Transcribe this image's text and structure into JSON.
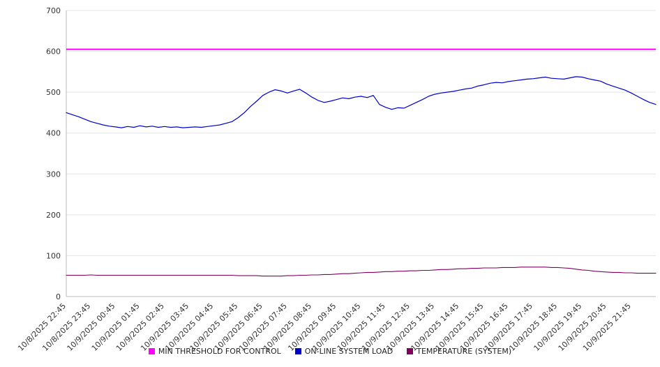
{
  "chart_data": {
    "type": "line",
    "title": "",
    "xlabel": "",
    "ylabel": "",
    "ylim": [
      0,
      700
    ],
    "ytick_step": 100,
    "y_tick_labels": [
      "0",
      "100",
      "200",
      "300",
      "400",
      "500",
      "600",
      "700"
    ],
    "grid": "horizontal",
    "legend_position": "bottom-center",
    "x_labels": [
      "10/8/2025 22:45",
      "10/8/2025 23:45",
      "10/9/2025 00:45",
      "10/9/2025 01:45",
      "10/9/2025 02:45",
      "10/9/2025 03:45",
      "10/9/2025 04:45",
      "10/9/2025 05:45",
      "10/9/2025 06:45",
      "10/9/2025 07:45",
      "10/9/2025 08:45",
      "10/9/2025 09:45",
      "10/9/2025 10:45",
      "10/9/2025 11:45",
      "10/9/2025 12:45",
      "10/9/2025 13:45",
      "10/9/2025 14:45",
      "10/9/2025 15:45",
      "10/9/2025 16:45",
      "10/9/2025 17:45",
      "10/9/2025 18:45",
      "10/9/2025 19:45",
      "10/9/2025 20:45",
      "10/9/2025 21:45"
    ],
    "points_per_label_interval": 4,
    "series": [
      {
        "name": "MIN THRESHOLD FOR CONTROL",
        "color": "#ff00ff",
        "stroke_width": 2,
        "constant": 605
      },
      {
        "name": "ON-LINE SYSTEM LOAD",
        "color": "#0000cc",
        "stroke_width": 1.2,
        "values": [
          450,
          445,
          440,
          434,
          428,
          424,
          420,
          417,
          415,
          413,
          416,
          414,
          418,
          415,
          417,
          414,
          416,
          414,
          415,
          413,
          414,
          415,
          414,
          416,
          418,
          420,
          424,
          428,
          438,
          450,
          465,
          478,
          492,
          500,
          506,
          503,
          498,
          503,
          507,
          498,
          488,
          480,
          475,
          478,
          482,
          486,
          484,
          488,
          490,
          487,
          492,
          470,
          463,
          458,
          462,
          461,
          468,
          475,
          482,
          490,
          495,
          498,
          500,
          502,
          505,
          508,
          510,
          515,
          518,
          522,
          524,
          523,
          526,
          528,
          530,
          532,
          533,
          535,
          537,
          534,
          533,
          532,
          535,
          538,
          537,
          533,
          530,
          527,
          520,
          515,
          510,
          505,
          498,
          490,
          482,
          475,
          470
        ]
      },
      {
        "name": "TEMPERATURE (SYSTEM)",
        "color": "#800060",
        "stroke_width": 1.1,
        "values": [
          52,
          52,
          52,
          52,
          53,
          52,
          52,
          52,
          52,
          52,
          52,
          52,
          52,
          52,
          52,
          52,
          52,
          52,
          52,
          52,
          52,
          52,
          52,
          52,
          52,
          52,
          52,
          52,
          51,
          51,
          51,
          51,
          50,
          50,
          50,
          50,
          51,
          51,
          52,
          52,
          53,
          53,
          54,
          54,
          55,
          56,
          56,
          57,
          58,
          59,
          59,
          60,
          61,
          61,
          62,
          62,
          63,
          63,
          64,
          64,
          65,
          66,
          66,
          67,
          68,
          68,
          69,
          69,
          70,
          70,
          70,
          71,
          71,
          71,
          72,
          72,
          72,
          72,
          72,
          71,
          71,
          70,
          69,
          67,
          65,
          64,
          62,
          61,
          60,
          59,
          59,
          58,
          58,
          57,
          57,
          57,
          57
        ]
      }
    ],
    "axis_color": "#bbbbbb",
    "grid_color": "#e5e5e5",
    "tick_label_color": "#333333"
  }
}
